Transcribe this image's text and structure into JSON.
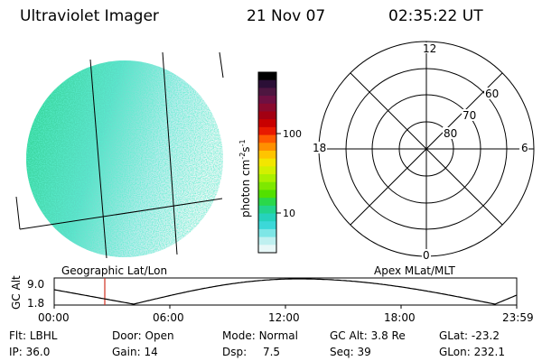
{
  "header": {
    "instrument": "Ultraviolet Imager",
    "date": "21 Nov 07",
    "time": "02:35:22 UT"
  },
  "colorbar": {
    "label": "photon cm",
    "label_sup1": "-2",
    "label_s": "s",
    "label_sup2": "-1",
    "ticks": [
      "100",
      "10"
    ],
    "colors": [
      "#000000",
      "#2b0f36",
      "#4d1640",
      "#6e1042",
      "#8a0a2e",
      "#a30012",
      "#c80000",
      "#e81a00",
      "#ff5a00",
      "#ff9000",
      "#ffc400",
      "#f2e600",
      "#d2f000",
      "#aaf000",
      "#7ee800",
      "#52e000",
      "#2ad84a",
      "#22d48c",
      "#26d2bc",
      "#3cd8d8",
      "#7ee6e6",
      "#bff0f0",
      "#e8f8f8"
    ]
  },
  "polar_grid": {
    "labels": {
      "top": "12",
      "left": "18",
      "right": "6",
      "bottom": "0"
    },
    "lat_labels": [
      "60",
      "70",
      "80"
    ]
  },
  "timeline": {
    "left_title": "Geographic Lat/Lon",
    "right_title": "Apex MLat/MLT",
    "axis_label": "GC Alt",
    "y_ticks": [
      "9.0",
      "1.8"
    ],
    "x_ticks": [
      "00:00",
      "06:00",
      "12:00",
      "18:00",
      "23:59"
    ],
    "marker_color": "#d03020",
    "line_color": "#000000"
  },
  "status": {
    "row1": [
      {
        "label": "Flt:",
        "value": "LBHL"
      },
      {
        "label": "Door:",
        "value": "Open"
      },
      {
        "label": "Mode:",
        "value": "Normal"
      },
      {
        "label": "GC Alt:",
        "value": "3.8 Re"
      },
      {
        "label": "GLat:",
        "value": "-23.2"
      }
    ],
    "row2": [
      {
        "label": "IP:",
        "value": "36.0"
      },
      {
        "label": "Gain:",
        "value": "14"
      },
      {
        "label": "Dsp:",
        "value": "7.5"
      },
      {
        "label": "Seq:",
        "value": "39"
      },
      {
        "label": "GLon:",
        "value": "232.1"
      }
    ]
  }
}
